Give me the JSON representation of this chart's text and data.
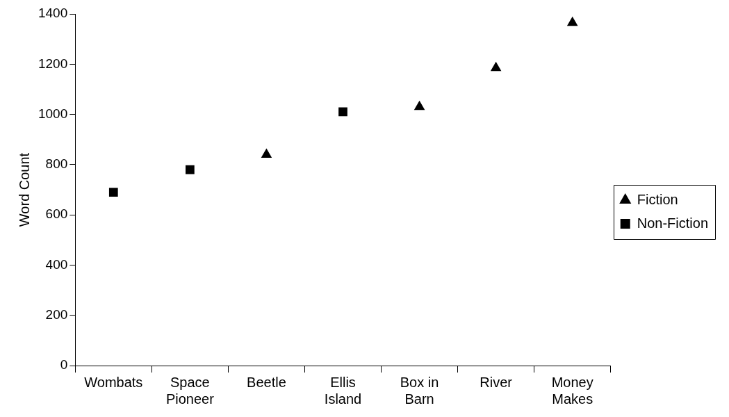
{
  "chart_data": {
    "type": "scatter",
    "ylabel": "Word Count",
    "categories": [
      "Wombats",
      "Space Pioneer",
      "Beetle",
      "Ellis Island",
      "Box in Barn",
      "River",
      "Money Makes"
    ],
    "series": [
      {
        "name": "Fiction",
        "color": "#000000",
        "marker": "triangle",
        "values": [
          null,
          null,
          840,
          null,
          1030,
          1185,
          1365
        ]
      },
      {
        "name": "Non-Fiction",
        "color": "#000000",
        "marker": "square",
        "values": [
          690,
          780,
          null,
          1010,
          null,
          null,
          null
        ]
      }
    ],
    "ylim": [
      0,
      1400
    ],
    "yticks": [
      0,
      200,
      400,
      600,
      800,
      1000,
      1200,
      1400
    ],
    "grid": false,
    "legend": "right"
  }
}
